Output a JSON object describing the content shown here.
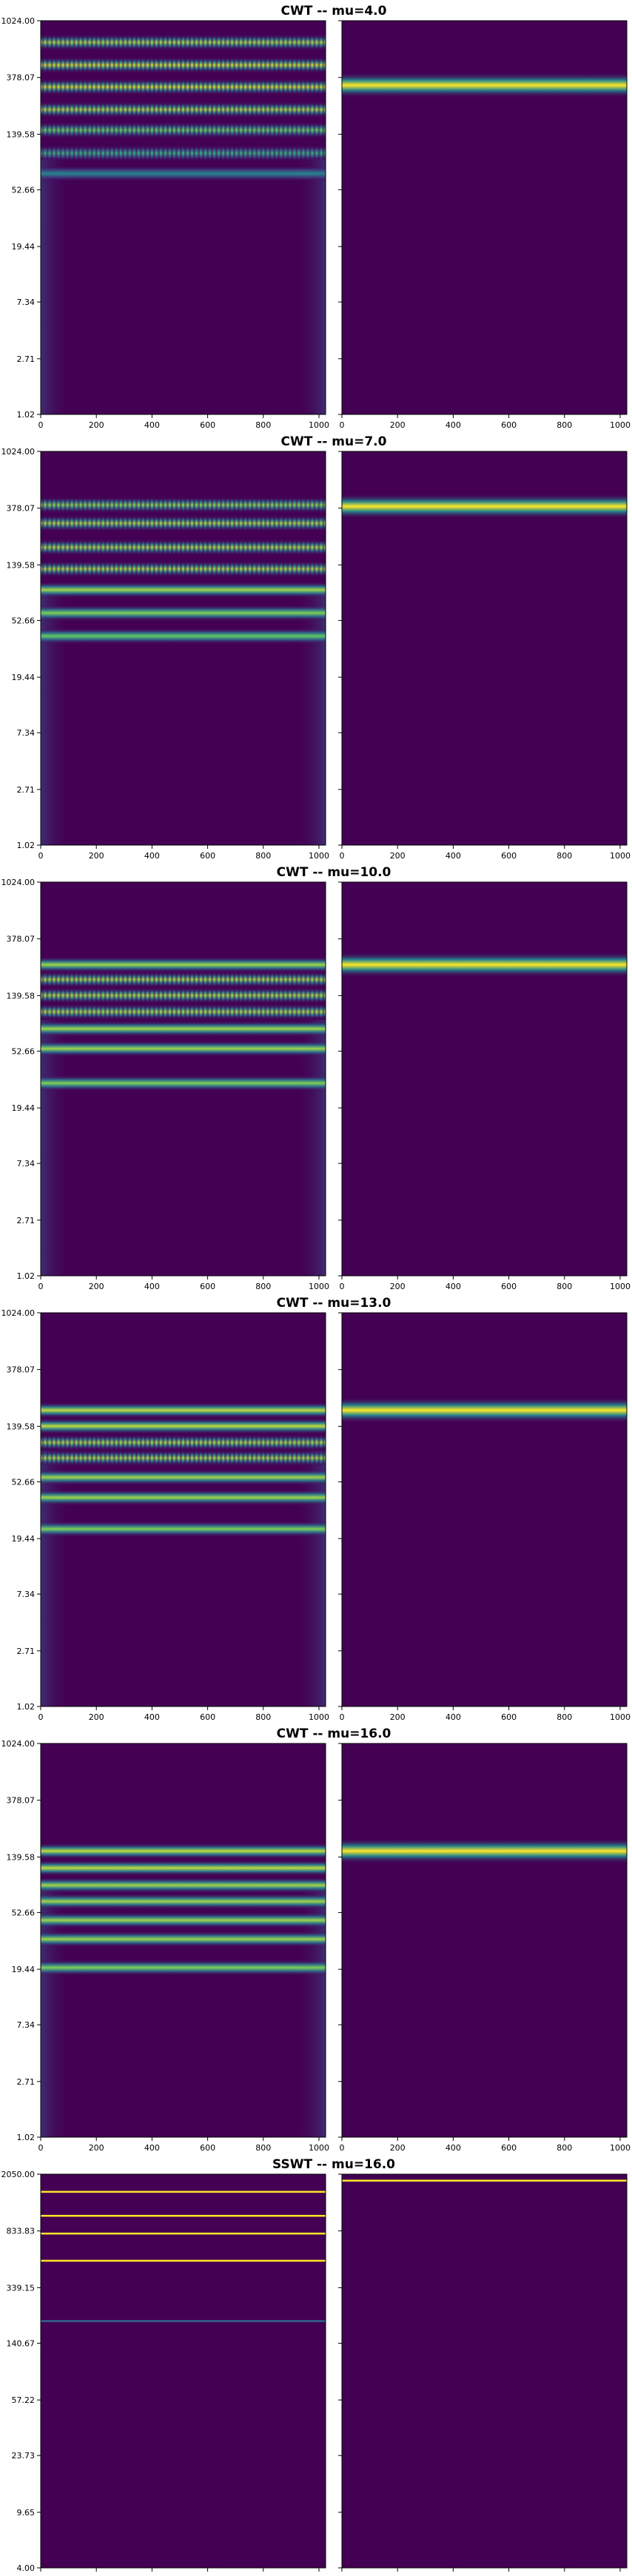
{
  "colormap": {
    "name": "viridis",
    "background": "#440154",
    "stops": [
      "#440154",
      "#3b528b",
      "#21918c",
      "#5ec962",
      "#fde725"
    ]
  },
  "chart_data": [
    {
      "type": "heatmap",
      "title": "CWT -- mu=4.0",
      "y_scale": "log",
      "ylim": [
        1.02,
        1024.0
      ],
      "y_ticks": [
        "1024.00",
        "378.07",
        "139.58",
        "52.66",
        "19.44",
        "7.34",
        "2.71",
        "1.02"
      ],
      "xlim": [
        0,
        1024
      ],
      "x_ticks": [
        "0",
        "200",
        "400",
        "600",
        "800",
        "1000"
      ],
      "left_panel_bands": [
        {
          "scale": 700,
          "intensity": 0.85,
          "striped": true
        },
        {
          "scale": 470,
          "intensity": 0.9,
          "striped": true
        },
        {
          "scale": 320,
          "intensity": 0.9,
          "striped": true
        },
        {
          "scale": 215,
          "intensity": 0.85,
          "striped": true
        },
        {
          "scale": 150,
          "intensity": 0.75,
          "striped": true
        },
        {
          "scale": 100,
          "intensity": 0.6,
          "striped": true
        },
        {
          "scale": 70,
          "intensity": 0.45,
          "striped": false
        }
      ],
      "right_panel_band": {
        "scale": 330,
        "intensity": 1.0
      }
    },
    {
      "type": "heatmap",
      "title": "CWT -- mu=7.0",
      "y_scale": "log",
      "ylim": [
        1.02,
        1024.0
      ],
      "y_ticks": [
        "1024.00",
        "378.07",
        "139.58",
        "52.66",
        "19.44",
        "7.34",
        "2.71",
        "1.02"
      ],
      "xlim": [
        0,
        1024
      ],
      "x_ticks": [
        "0",
        "200",
        "400",
        "600",
        "800",
        "1000"
      ],
      "left_panel_bands": [
        {
          "scale": 400,
          "intensity": 0.8,
          "striped": true
        },
        {
          "scale": 290,
          "intensity": 0.85,
          "striped": true
        },
        {
          "scale": 190,
          "intensity": 0.85,
          "striped": true
        },
        {
          "scale": 130,
          "intensity": 0.85,
          "striped": true
        },
        {
          "scale": 90,
          "intensity": 0.85,
          "striped": false
        },
        {
          "scale": 60,
          "intensity": 0.8,
          "striped": false
        },
        {
          "scale": 40,
          "intensity": 0.75,
          "striped": false
        }
      ],
      "right_panel_band": {
        "scale": 390,
        "intensity": 1.0
      }
    },
    {
      "type": "heatmap",
      "title": "CWT -- mu=10.0",
      "y_scale": "log",
      "ylim": [
        1.02,
        1024.0
      ],
      "y_ticks": [
        "1024.00",
        "378.07",
        "139.58",
        "52.66",
        "19.44",
        "7.34",
        "2.71",
        "1.02"
      ],
      "xlim": [
        0,
        1024
      ],
      "x_ticks": [
        "0",
        "200",
        "400",
        "600",
        "800",
        "1000"
      ],
      "left_panel_bands": [
        {
          "scale": 240,
          "intensity": 0.85,
          "striped": false
        },
        {
          "scale": 185,
          "intensity": 0.85,
          "striped": true
        },
        {
          "scale": 140,
          "intensity": 0.85,
          "striped": true
        },
        {
          "scale": 105,
          "intensity": 0.85,
          "striped": true
        },
        {
          "scale": 78,
          "intensity": 0.85,
          "striped": false
        },
        {
          "scale": 55,
          "intensity": 0.85,
          "striped": false
        },
        {
          "scale": 30,
          "intensity": 0.8,
          "striped": false
        }
      ],
      "right_panel_band": {
        "scale": 240,
        "intensity": 1.0
      }
    },
    {
      "type": "heatmap",
      "title": "CWT -- mu=13.0",
      "y_scale": "log",
      "ylim": [
        1.02,
        1024.0
      ],
      "y_ticks": [
        "1024.00",
        "378.07",
        "139.58",
        "52.66",
        "19.44",
        "7.34",
        "2.71",
        "1.02"
      ],
      "xlim": [
        0,
        1024
      ],
      "x_ticks": [
        "0",
        "200",
        "400",
        "600",
        "800",
        "1000"
      ],
      "left_panel_bands": [
        {
          "scale": 185,
          "intensity": 0.9,
          "striped": false
        },
        {
          "scale": 140,
          "intensity": 0.9,
          "striped": false
        },
        {
          "scale": 105,
          "intensity": 0.85,
          "striped": true
        },
        {
          "scale": 80,
          "intensity": 0.85,
          "striped": true
        },
        {
          "scale": 57,
          "intensity": 0.85,
          "striped": false
        },
        {
          "scale": 40,
          "intensity": 0.85,
          "striped": false
        },
        {
          "scale": 23,
          "intensity": 0.8,
          "striped": false
        }
      ],
      "right_panel_band": {
        "scale": 185,
        "intensity": 1.0
      }
    },
    {
      "type": "heatmap",
      "title": "CWT -- mu=16.0",
      "y_scale": "log",
      "ylim": [
        1.02,
        1024.0
      ],
      "y_ticks": [
        "1024.00",
        "378.07",
        "139.58",
        "52.66",
        "19.44",
        "7.34",
        "2.71",
        "1.02"
      ],
      "xlim": [
        0,
        1024
      ],
      "x_ticks": [
        "0",
        "200",
        "400",
        "600",
        "800",
        "1000"
      ],
      "left_panel_bands": [
        {
          "scale": 155,
          "intensity": 0.9,
          "striped": false
        },
        {
          "scale": 115,
          "intensity": 0.9,
          "striped": false
        },
        {
          "scale": 85,
          "intensity": 0.85,
          "striped": false
        },
        {
          "scale": 64,
          "intensity": 0.85,
          "striped": false
        },
        {
          "scale": 46,
          "intensity": 0.85,
          "striped": false
        },
        {
          "scale": 33,
          "intensity": 0.85,
          "striped": false
        },
        {
          "scale": 20,
          "intensity": 0.8,
          "striped": false
        }
      ],
      "right_panel_band": {
        "scale": 155,
        "intensity": 1.0
      }
    },
    {
      "type": "heatmap",
      "title": "SSWT -- mu=16.0",
      "y_scale": "log",
      "ylim": [
        4.0,
        2050.0
      ],
      "y_ticks": [
        "2050.00",
        "833.83",
        "339.15",
        "140.67",
        "57.22",
        "23.73",
        "9.65",
        "4.00"
      ],
      "xlim": [
        0,
        1024
      ],
      "x_ticks": [
        "0",
        "200",
        "400",
        "600",
        "800",
        "1000"
      ],
      "left_panel_lines": [
        {
          "scale": 1550,
          "color": "#fde725"
        },
        {
          "scale": 1060,
          "color": "#fde725"
        },
        {
          "scale": 800,
          "color": "#fde725"
        },
        {
          "scale": 520,
          "color": "#fde725"
        },
        {
          "scale": 200,
          "color": "#31688e"
        }
      ],
      "right_panel_line": {
        "scale": 1850,
        "color": "#fde725"
      }
    }
  ]
}
